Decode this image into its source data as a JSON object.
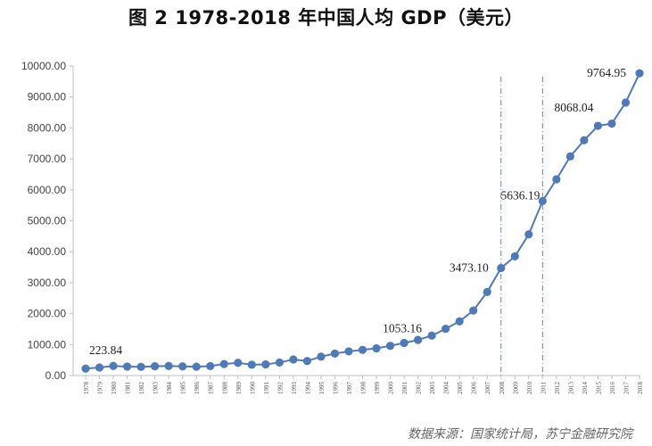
{
  "chart_data": {
    "type": "line",
    "title": "图 2 1978-2018 年中国人均 GDP（美元）",
    "xlabel": "",
    "ylabel": "",
    "ylim": [
      0,
      10000
    ],
    "y_ticks": [
      "0.00",
      "1000.00",
      "2000.00",
      "3000.00",
      "4000.00",
      "5000.00",
      "6000.00",
      "7000.00",
      "8000.00",
      "9000.00",
      "10000.00"
    ],
    "x": [
      "1978",
      "1979",
      "1980",
      "1981",
      "1982",
      "1983",
      "1984",
      "1985",
      "1986",
      "1987",
      "1988",
      "1989",
      "1990",
      "1991",
      "1992",
      "1993",
      "1994",
      "1995",
      "1996",
      "1997",
      "1998",
      "1999",
      "2000",
      "2001",
      "2002",
      "2003",
      "2004",
      "2005",
      "2006",
      "2007",
      "2008",
      "2009",
      "2010",
      "2011",
      "2012",
      "2013",
      "2014",
      "2015",
      "2016",
      "2017",
      "2018"
    ],
    "series": [
      {
        "values": [
          223.84,
          260,
          310,
          290,
          280,
          300,
          310,
          295,
          285,
          305,
          370,
          410,
          350,
          360,
          420,
          520,
          470,
          610,
          710,
          780,
          830,
          880,
          960,
          1053.16,
          1150,
          1290,
          1510,
          1750,
          2100,
          2700,
          3473.1,
          3850,
          4560,
          5636.19,
          6340,
          7080,
          7600,
          8068.04,
          8140,
          8820,
          9764.95
        ]
      }
    ],
    "annotations": [
      {
        "x": "1978",
        "label": "223.84"
      },
      {
        "x": "2001",
        "label": "1053.16"
      },
      {
        "x": "2008",
        "label": "3473.10"
      },
      {
        "x": "2011",
        "label": "5636.19"
      },
      {
        "x": "2015",
        "label": "8068.04"
      },
      {
        "x": "2018",
        "label": "9764.95"
      }
    ],
    "reference_lines_x": [
      "2008",
      "2011"
    ],
    "grid": false,
    "colors": {
      "line": "#4f7ab8",
      "marker": "#4f7ab8",
      "refline": "#5a8bb0",
      "axis": "#bfbfbf",
      "text": "#444444"
    }
  },
  "source_note": "数据来源：国家统计局，苏宁金融研究院"
}
